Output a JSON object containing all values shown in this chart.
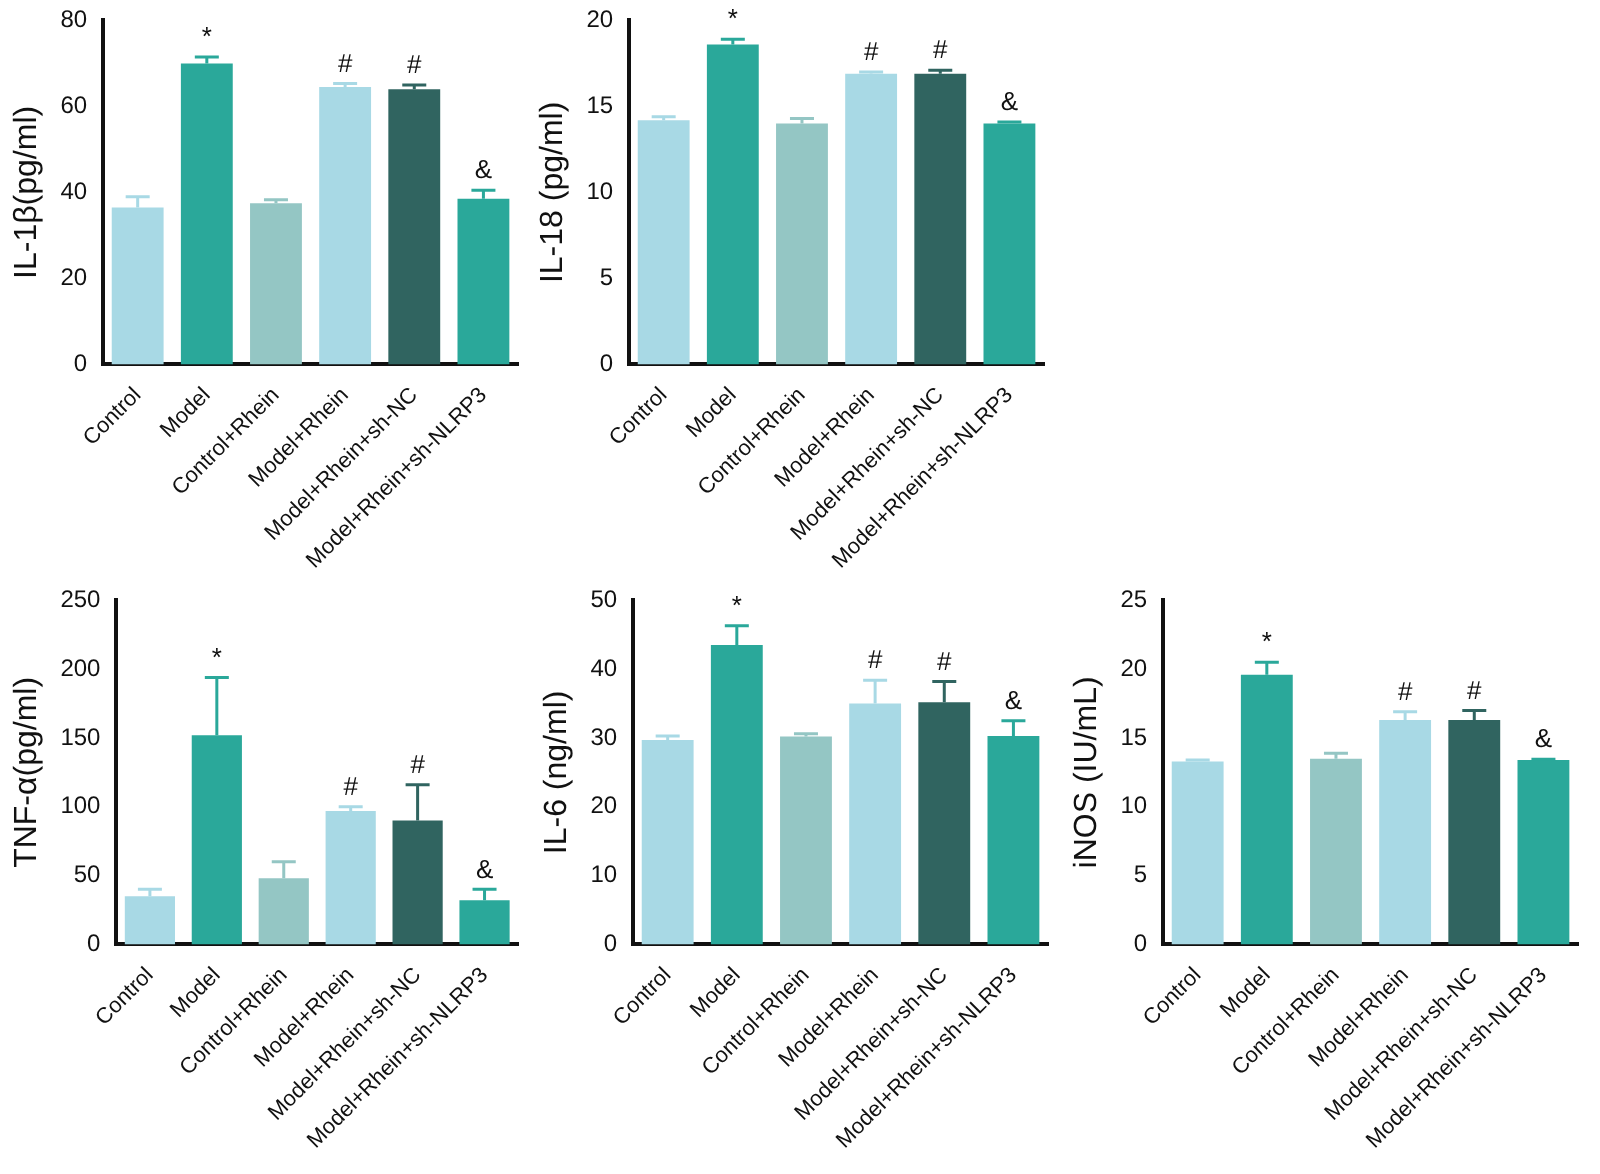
{
  "chart_data": [
    {
      "type": "bar",
      "ylabel": "IL-1β(pg/ml)",
      "categories": [
        "Control",
        "Model",
        "Control+Rhein",
        "Model+Rhein",
        "Model+Rhein+sh-NC",
        "Model+Rhein+sh-NLRP3"
      ],
      "values": [
        36.5,
        70,
        37.5,
        64.5,
        64,
        38.5
      ],
      "errors": [
        2.5,
        1.5,
        0.8,
        0.8,
        1,
        2
      ],
      "colors": [
        "#a8d9e5",
        "#2aa89a",
        "#94c6c4",
        "#a8d9e5",
        "#306460",
        "#2aa89a"
      ],
      "ylim": [
        0,
        80
      ],
      "yticks": [
        0,
        20,
        40,
        60,
        80
      ],
      "grid": false,
      "legend": false,
      "annotations": [
        {
          "text": "*",
          "x": "Model",
          "y": 71.5
        },
        {
          "text": "#",
          "x": "Model+Rhein",
          "y": 65.3
        },
        {
          "text": "#",
          "x": "Model+Rhein+sh-NC",
          "y": 65
        },
        {
          "text": "&",
          "x": "Model+Rhein+sh-NLRP3",
          "y": 40.5
        }
      ]
    },
    {
      "type": "bar",
      "ylabel": "IL-18 (pg/ml)",
      "categories": [
        "Control",
        "Model",
        "Control+Rhein",
        "Model+Rhein",
        "Model+Rhein+sh-NC",
        "Model+Rhein+sh-NLRP3"
      ],
      "values": [
        14.2,
        18.6,
        14,
        16.9,
        16.9,
        14
      ],
      "errors": [
        0.2,
        0.3,
        0.3,
        0.1,
        0.2,
        0.1
      ],
      "colors": [
        "#a8d9e5",
        "#2aa89a",
        "#94c6c4",
        "#a8d9e5",
        "#306460",
        "#2aa89a"
      ],
      "ylim": [
        0,
        20
      ],
      "yticks": [
        0,
        5,
        10,
        15,
        20
      ],
      "grid": false,
      "legend": false,
      "annotations": [
        {
          "text": "*",
          "x": "Model",
          "y": 18.9
        },
        {
          "text": "#",
          "x": "Model+Rhein",
          "y": 17
        },
        {
          "text": "#",
          "x": "Model+Rhein+sh-NC",
          "y": 17.1
        },
        {
          "text": "&",
          "x": "Model+Rhein+sh-NLRP3",
          "y": 14.1
        }
      ]
    },
    {
      "type": "bar",
      "ylabel": "TNF-α(pg/ml)",
      "categories": [
        "Control",
        "Model",
        "Control+Rhein",
        "Model+Rhein",
        "Model+Rhein+sh-NC",
        "Model+Rhein+sh-NLRP3"
      ],
      "values": [
        35,
        152,
        48,
        97,
        90,
        32
      ],
      "errors": [
        5,
        42,
        12,
        3,
        26,
        8
      ],
      "colors": [
        "#a8d9e5",
        "#2aa89a",
        "#94c6c4",
        "#a8d9e5",
        "#306460",
        "#2aa89a"
      ],
      "ylim": [
        0,
        250
      ],
      "yticks": [
        0,
        50,
        100,
        150,
        200,
        250
      ],
      "grid": false,
      "legend": false,
      "annotations": [
        {
          "text": "*",
          "x": "Model",
          "y": 194
        },
        {
          "text": "#",
          "x": "Model+Rhein",
          "y": 100
        },
        {
          "text": "#",
          "x": "Model+Rhein+sh-NC",
          "y": 116
        },
        {
          "text": "&",
          "x": "Model+Rhein+sh-NLRP3",
          "y": 40
        }
      ]
    },
    {
      "type": "bar",
      "ylabel": "IL-6 (ng/ml)",
      "categories": [
        "Control",
        "Model",
        "Control+Rhein",
        "Model+Rhein",
        "Model+Rhein+sh-NC",
        "Model+Rhein+sh-NLRP3"
      ],
      "values": [
        29.7,
        43.5,
        30.2,
        35,
        35.2,
        30.3
      ],
      "errors": [
        0.6,
        2.8,
        0.4,
        3.4,
        3,
        2.2
      ],
      "colors": [
        "#a8d9e5",
        "#2aa89a",
        "#94c6c4",
        "#a8d9e5",
        "#306460",
        "#2aa89a"
      ],
      "ylim": [
        0,
        50
      ],
      "yticks": [
        0,
        10,
        20,
        30,
        40,
        50
      ],
      "grid": false,
      "legend": false,
      "annotations": [
        {
          "text": "*",
          "x": "Model",
          "y": 46.3
        },
        {
          "text": "#",
          "x": "Model+Rhein",
          "y": 38.4
        },
        {
          "text": "#",
          "x": "Model+Rhein+sh-NC",
          "y": 38.2
        },
        {
          "text": "&",
          "x": "Model+Rhein+sh-NLRP3",
          "y": 32.5
        }
      ]
    },
    {
      "type": "bar",
      "ylabel": "iNOS (IU/mL)",
      "categories": [
        "Control",
        "Model",
        "Control+Rhein",
        "Model+Rhein",
        "Model+Rhein+sh-NC",
        "Model+Rhein+sh-NLRP3"
      ],
      "values": [
        13.3,
        19.6,
        13.5,
        16.3,
        16.3,
        13.4
      ],
      "errors": [
        0.1,
        0.9,
        0.4,
        0.6,
        0.7,
        0.05
      ],
      "colors": [
        "#a8d9e5",
        "#2aa89a",
        "#94c6c4",
        "#a8d9e5",
        "#306460",
        "#2aa89a"
      ],
      "ylim": [
        0,
        25
      ],
      "yticks": [
        0,
        5,
        10,
        15,
        20,
        25
      ],
      "grid": false,
      "legend": false,
      "annotations": [
        {
          "text": "*",
          "x": "Model",
          "y": 20.5
        },
        {
          "text": "#",
          "x": "Model+Rhein",
          "y": 16.9
        },
        {
          "text": "#",
          "x": "Model+Rhein+sh-NC",
          "y": 17
        },
        {
          "text": "&",
          "x": "Model+Rhein+sh-NLRP3",
          "y": 13.45
        }
      ]
    }
  ]
}
